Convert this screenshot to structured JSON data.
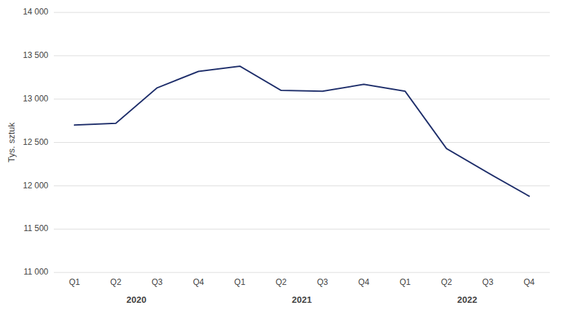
{
  "chart_data": {
    "type": "line",
    "y_label": "Tys. sztuk",
    "categories": [
      "Q1",
      "Q2",
      "Q3",
      "Q4",
      "Q1",
      "Q2",
      "Q3",
      "Q4",
      "Q1",
      "Q2",
      "Q3",
      "Q4"
    ],
    "values": [
      12700,
      12720,
      13130,
      13320,
      13380,
      13100,
      13090,
      13170,
      13090,
      12430,
      12150,
      11880
    ],
    "color": "#1f2f6b",
    "annotations": [
      "2020",
      "2021",
      "2022"
    ],
    "ylim": [
      11000,
      14000
    ],
    "yticks": [
      {
        "value": 11000,
        "label": "11 000"
      },
      {
        "value": 11500,
        "label": "11 500"
      },
      {
        "value": 12000,
        "label": "12 000"
      },
      {
        "value": 12500,
        "label": "12 500"
      },
      {
        "value": 13000,
        "label": "13 000"
      },
      {
        "value": 13500,
        "label": "13 500"
      },
      {
        "value": 14000,
        "label": "14 000"
      }
    ],
    "grid": true
  }
}
